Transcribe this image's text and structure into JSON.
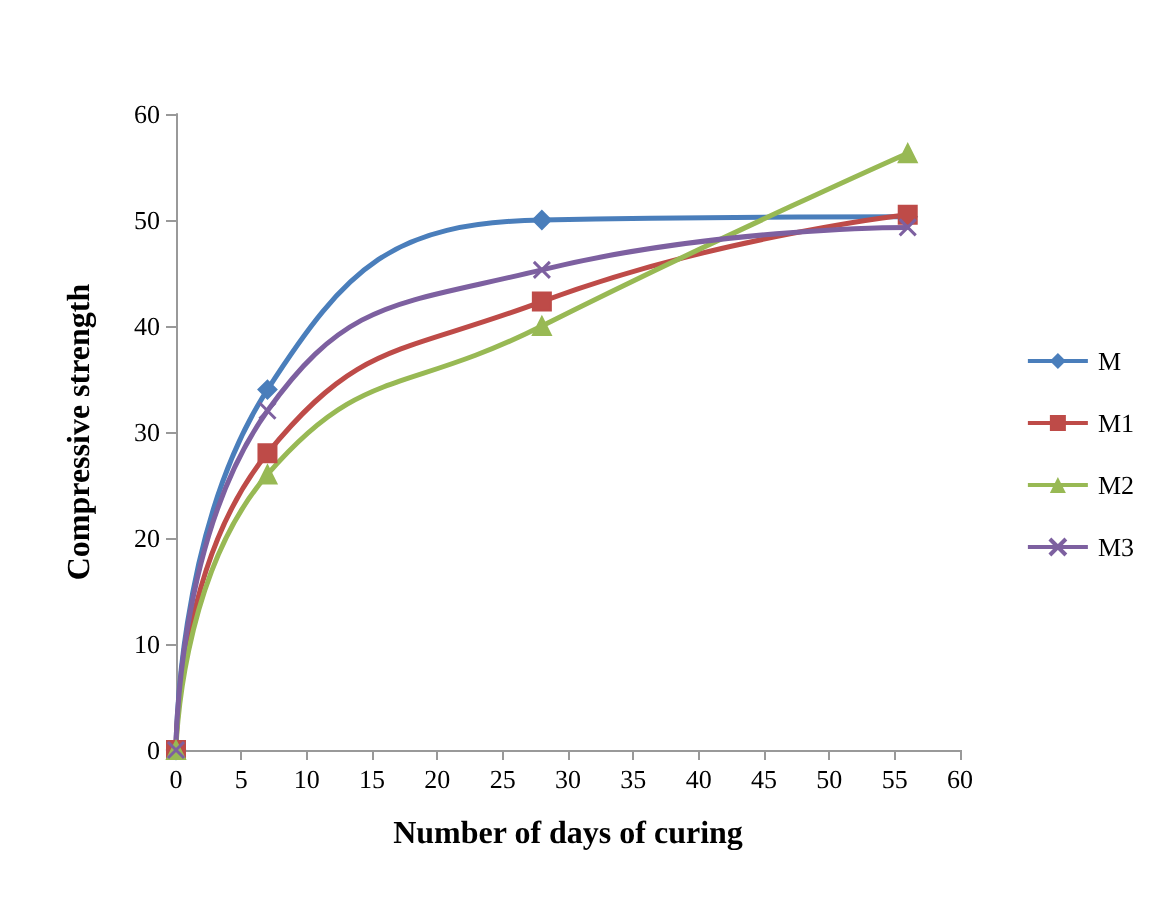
{
  "chart_data": {
    "type": "line",
    "xlabel": "Number of days of curing",
    "ylabel": "Compressive strength",
    "x": [
      0,
      7,
      28,
      56
    ],
    "series": [
      {
        "name": "M",
        "color": "#4a7ebb",
        "marker": "diamond",
        "values": [
          0,
          34,
          50,
          50.3
        ]
      },
      {
        "name": "M1",
        "color": "#be4b48",
        "marker": "square",
        "values": [
          0,
          28,
          42.3,
          50.5
        ]
      },
      {
        "name": "M2",
        "color": "#98b954",
        "marker": "triangle",
        "values": [
          0,
          26,
          40,
          56.3
        ]
      },
      {
        "name": "M3",
        "color": "#7d60a0",
        "marker": "cross",
        "values": [
          0,
          32,
          45.3,
          49.3
        ]
      }
    ],
    "xlim": [
      0,
      60
    ],
    "xticks": [
      0,
      5,
      10,
      15,
      20,
      25,
      30,
      35,
      40,
      45,
      50,
      55,
      60
    ],
    "ylim": [
      0,
      60
    ],
    "yticks": [
      0,
      10,
      20,
      30,
      40,
      50,
      60
    ],
    "grid": false,
    "legend": "right",
    "line_style": "solid"
  }
}
